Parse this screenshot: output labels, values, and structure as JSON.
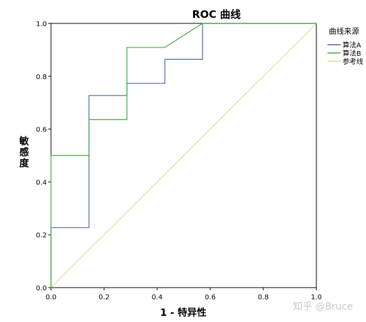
{
  "chart_data": {
    "type": "line",
    "title": "ROC 曲线",
    "xlabel": "1 - 特异性",
    "ylabel": "敏感度",
    "xlim": [
      0,
      1
    ],
    "ylim": [
      0,
      1
    ],
    "x_ticks": [
      "0.0",
      "0.2",
      "0.4",
      "0.6",
      "0.8",
      "1.0"
    ],
    "y_ticks": [
      "0.0",
      "0.2",
      "0.4",
      "0.6",
      "0.8",
      "1.0"
    ],
    "grid": false,
    "legend_title": "曲线来源",
    "legend_position": "right",
    "series": [
      {
        "name": "算法A",
        "color": "#4a66a8",
        "x": [
          0,
          0,
          0.143,
          0.143,
          0.286,
          0.286,
          0.429,
          0.429,
          0.571,
          0.571,
          1.0
        ],
        "y": [
          0,
          0.227,
          0.227,
          0.727,
          0.727,
          0.773,
          0.773,
          0.864,
          0.864,
          1.0,
          1.0
        ]
      },
      {
        "name": "算法B",
        "color": "#3aaa3a",
        "x": [
          0,
          0,
          0.143,
          0.143,
          0.286,
          0.286,
          0.429,
          0.571,
          1.0
        ],
        "y": [
          0,
          0.5,
          0.5,
          0.636,
          0.636,
          0.909,
          0.909,
          1.0,
          1.0
        ]
      },
      {
        "name": "参考线",
        "color": "#dcdca0",
        "x": [
          0,
          1
        ],
        "y": [
          0,
          1
        ]
      }
    ]
  },
  "watermark": "知乎 @Bruce"
}
